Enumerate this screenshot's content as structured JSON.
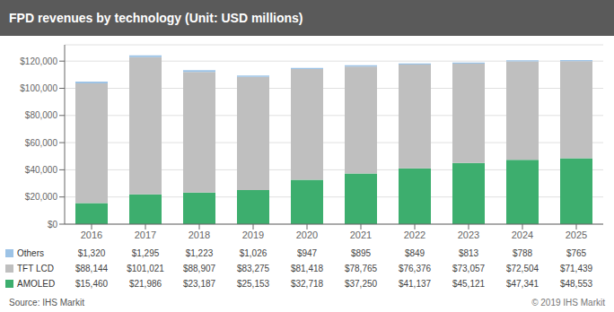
{
  "chart_data": {
    "type": "bar",
    "title": "FPD revenues by technology (Unit: USD millions)",
    "categories": [
      "2016",
      "2017",
      "2018",
      "2019",
      "2020",
      "2021",
      "2022",
      "2023",
      "2024",
      "2025"
    ],
    "series": [
      {
        "name": "AMOLED",
        "color": "#3dae6e",
        "values": [
          15460,
          21986,
          23187,
          25153,
          32718,
          37250,
          41137,
          45121,
          47341,
          48553
        ],
        "value_labels": [
          "$15,460",
          "$21,986",
          "$23,187",
          "$25,153",
          "$32,718",
          "$37,250",
          "$41,137",
          "$45,121",
          "$47,341",
          "$48,553"
        ]
      },
      {
        "name": "TFT LCD",
        "color": "#bfbfbf",
        "values": [
          88144,
          101021,
          88907,
          83275,
          81418,
          78765,
          76376,
          73057,
          72504,
          71439
        ],
        "value_labels": [
          "$88,144",
          "$101,021",
          "$88,907",
          "$83,275",
          "$81,418",
          "$78,765",
          "$76,376",
          "$73,057",
          "$72,504",
          "$71,439"
        ]
      },
      {
        "name": "Others",
        "color": "#9dc3e6",
        "values": [
          1320,
          1295,
          1223,
          1026,
          947,
          895,
          849,
          813,
          788,
          765
        ],
        "value_labels": [
          "$1,320",
          "$1,295",
          "$1,223",
          "$1,026",
          "$947",
          "$895",
          "$849",
          "$813",
          "$788",
          "$765"
        ]
      }
    ],
    "ylim": [
      0,
      132000
    ],
    "yticks": [
      {
        "value": 0,
        "label": "$0"
      },
      {
        "value": 20000,
        "label": "$20,000"
      },
      {
        "value": 40000,
        "label": "$40,000"
      },
      {
        "value": 60000,
        "label": "$60,000"
      },
      {
        "value": 80000,
        "label": "$80,000"
      },
      {
        "value": 100000,
        "label": "$100,000"
      },
      {
        "value": 120000,
        "label": "$120,000"
      }
    ],
    "grid": true,
    "stacked": true,
    "legend": "bottom",
    "annotations": [
      "Source: IHS Markit",
      "© 2019 IHS Markit"
    ]
  }
}
